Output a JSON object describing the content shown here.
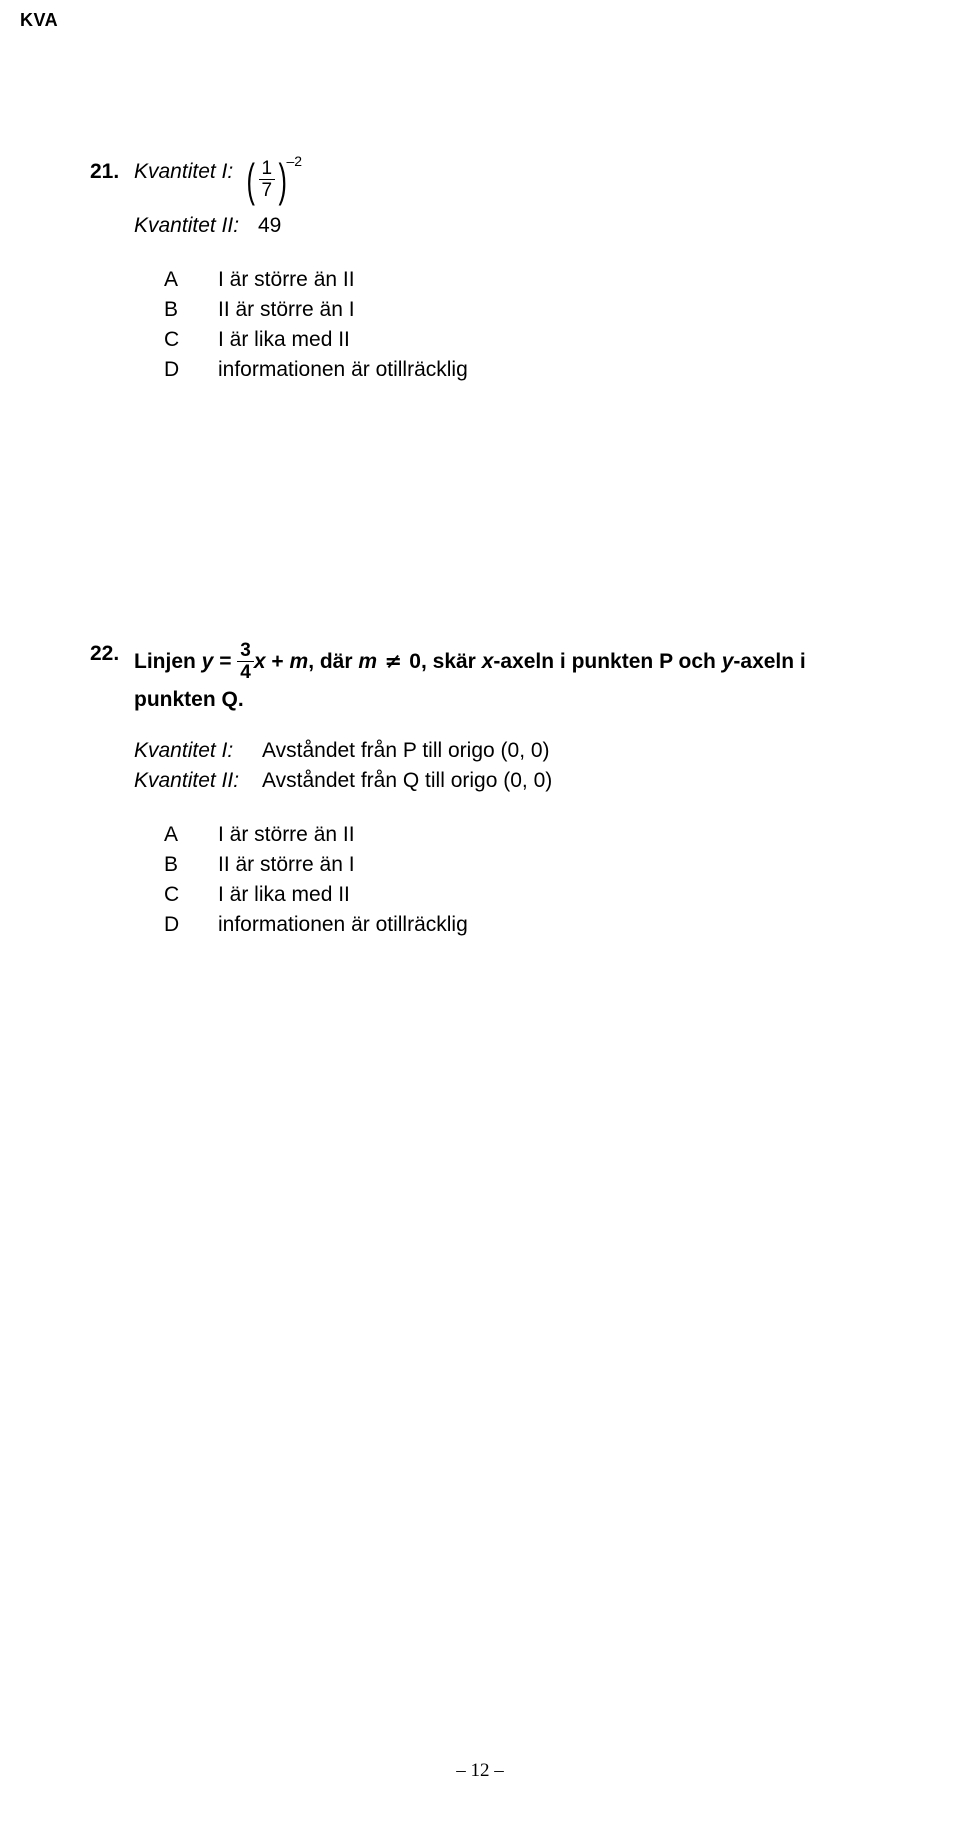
{
  "header": "KVA",
  "q21": {
    "number": "21.",
    "kv1_label": "Kvantitet I:",
    "kv1_frac_num": "1",
    "kv1_frac_den": "7",
    "kv1_exp": "–2",
    "kv2_label": "Kvantitet II:",
    "kv2_value": "49",
    "options": {
      "A": {
        "letter": "A",
        "text": "I är större än II"
      },
      "B": {
        "letter": "B",
        "text": "II är större än I"
      },
      "C": {
        "letter": "C",
        "text": "I är lika med II"
      },
      "D": {
        "letter": "D",
        "text": "informationen är otillräcklig"
      }
    }
  },
  "q22": {
    "number": "22.",
    "stem_part1": "Linjen ",
    "stem_y": "y",
    "stem_eq": " = ",
    "stem_frac_num": "3",
    "stem_frac_den": "4",
    "stem_x": "x",
    "stem_plus": " + ",
    "stem_m": "m",
    "stem_part2": ", där ",
    "stem_m2": "m",
    "stem_neq": " ≠ ",
    "stem_zero": "0",
    "stem_part3": ", skär ",
    "stem_xaxis": "x",
    "stem_part4": "-axeln i punkten P och ",
    "stem_yaxis": "y",
    "stem_part5": "-axeln i",
    "stem_line2": "punkten Q.",
    "kv1_label": "Kvantitet I:",
    "kv1_text": "Avståndet från P till origo (0, 0)",
    "kv2_label": "Kvantitet II:",
    "kv2_text": "Avståndet från Q till origo (0, 0)",
    "options": {
      "A": {
        "letter": "A",
        "text": "I är större än II"
      },
      "B": {
        "letter": "B",
        "text": "II är större än I"
      },
      "C": {
        "letter": "C",
        "text": "I är lika med II"
      },
      "D": {
        "letter": "D",
        "text": "informationen är otillräcklig"
      }
    }
  },
  "page_number": "– 12 –"
}
